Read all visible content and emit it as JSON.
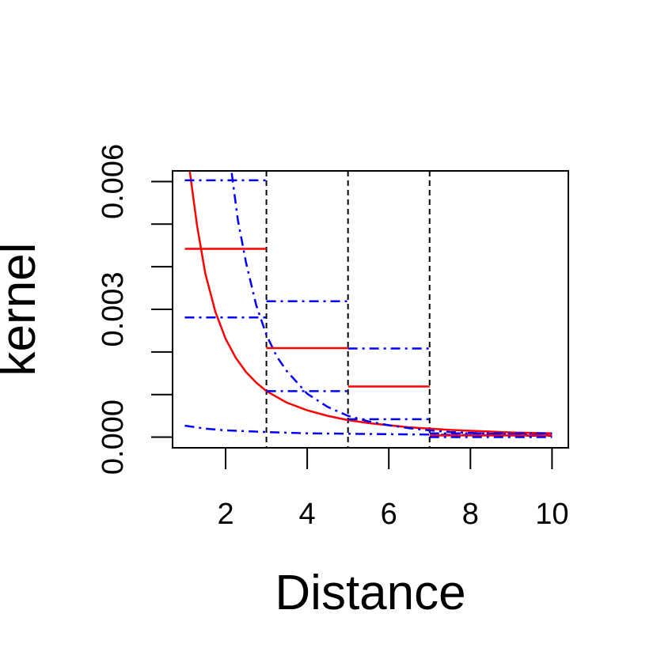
{
  "chart_data": {
    "type": "line",
    "title": "",
    "xlabel": "Distance",
    "ylabel": "kernel",
    "xlim": [
      0.7,
      10.4
    ],
    "ylim": [
      -0.00025,
      0.00625
    ],
    "x_ticks": [
      2,
      4,
      6,
      8,
      10
    ],
    "x_tick_labels": [
      "2",
      "4",
      "6",
      "8",
      "10"
    ],
    "y_ticks": [
      0.0,
      0.001,
      0.002,
      0.003,
      0.004,
      0.005,
      0.006
    ],
    "y_tick_labels": [
      "0.000",
      "",
      "",
      "0.003",
      "",
      "",
      "0.006"
    ],
    "grid": false,
    "legend": "none",
    "colors": {
      "red_series": "#ff0000",
      "blue_series": "#0000ff",
      "bin_edges": "#000000"
    },
    "bin_edges": [
      3,
      5,
      7
    ],
    "series": [
      {
        "style": "solid",
        "color": "#ff0000",
        "x": [
          1.12,
          1.3,
          1.5,
          1.75,
          2.0,
          2.25,
          2.5,
          2.75,
          3.0,
          3.5,
          4.0,
          4.5,
          5.0,
          5.5,
          6.0,
          6.5,
          7.0,
          7.5,
          8.0,
          8.5,
          9.0,
          9.5,
          10.0
        ],
        "y": [
          0.00625,
          0.00497,
          0.00385,
          0.00294,
          0.00231,
          0.00186,
          0.00153,
          0.00128,
          0.00108,
          0.00081,
          0.00063,
          0.0005,
          0.0004,
          0.00033,
          0.00028,
          0.00023,
          0.0002,
          0.00017,
          0.00015,
          0.00013,
          0.00011,
          0.0001,
          9e-05
        ]
      },
      {
        "style": "dashdot",
        "color": "#0000ff",
        "x": [
          2.15,
          2.3,
          2.5,
          2.75,
          3.0,
          3.25,
          3.5,
          4.0,
          4.5,
          5.0,
          5.5,
          6.0,
          6.5,
          7.0,
          7.5,
          8.0,
          8.5,
          9.0,
          9.5,
          10.0
        ],
        "y": [
          0.0062,
          0.0051,
          0.0041,
          0.0031,
          0.0024,
          0.0019,
          0.00155,
          0.00102,
          0.00071,
          0.0005,
          0.00037,
          0.00028,
          0.00021,
          0.00016,
          0.00012,
          0.0001,
          8e-05,
          7e-05,
          6e-05,
          5e-05
        ]
      },
      {
        "style": "dashdot",
        "color": "#0000ff",
        "x": [
          1.0,
          1.5,
          2.0,
          3.0,
          4.0,
          5.0,
          6.0,
          7.0,
          8.0,
          9.0,
          10.0
        ],
        "y": [
          0.00027,
          0.0002,
          0.00016,
          0.00012,
          9e-05,
          8e-05,
          7e-05,
          6e-05,
          5e-05,
          4e-05,
          3e-05
        ]
      }
    ],
    "step_estimates": [
      {
        "style": "solid",
        "color": "#ff0000",
        "x0": 1.0,
        "x1": 3.0,
        "y": 0.00442
      },
      {
        "style": "solid",
        "color": "#ff0000",
        "x0": 3.0,
        "x1": 5.0,
        "y": 0.00209
      },
      {
        "style": "solid",
        "color": "#ff0000",
        "x0": 5.0,
        "x1": 7.0,
        "y": 0.00119
      },
      {
        "style": "solid",
        "color": "#ff0000",
        "x0": 7.0,
        "x1": 10.0,
        "y": 4e-05
      },
      {
        "style": "dashdot",
        "color": "#0000ff",
        "x0": 1.0,
        "x1": 3.0,
        "y": 0.00603
      },
      {
        "style": "dashdot",
        "color": "#0000ff",
        "x0": 1.0,
        "x1": 3.0,
        "y": 0.00281
      },
      {
        "style": "dashdot",
        "color": "#0000ff",
        "x0": 3.0,
        "x1": 5.0,
        "y": 0.00319
      },
      {
        "style": "dashdot",
        "color": "#0000ff",
        "x0": 3.0,
        "x1": 5.0,
        "y": 0.00108
      },
      {
        "style": "dashdot",
        "color": "#0000ff",
        "x0": 5.0,
        "x1": 7.0,
        "y": 0.00208
      },
      {
        "style": "dashdot",
        "color": "#0000ff",
        "x0": 5.0,
        "x1": 7.0,
        "y": 0.00042
      },
      {
        "style": "dashdot",
        "color": "#0000ff",
        "x0": 7.0,
        "x1": 10.0,
        "y": 9e-05
      },
      {
        "style": "dashdot",
        "color": "#0000ff",
        "x0": 7.0,
        "x1": 10.0,
        "y": 0.0
      }
    ]
  }
}
